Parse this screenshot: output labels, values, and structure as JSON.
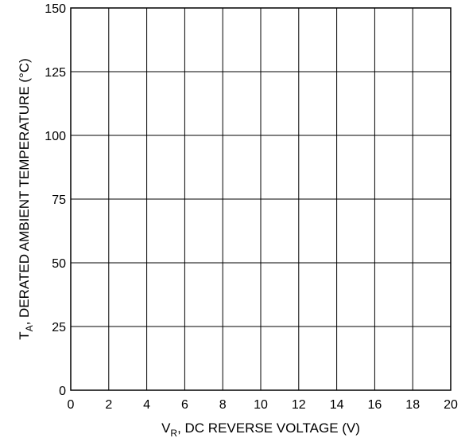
{
  "chart_data": {
    "type": "line",
    "title": "",
    "xlabel": {
      "main": "V",
      "sub": "R",
      "rest": ", DC REVERSE VOLTAGE (V)"
    },
    "ylabel": {
      "main": "T",
      "sub": "A",
      "rest": ", DERATED AMBIENT TEMPERATURE (°C)"
    },
    "xlim": [
      0,
      20
    ],
    "ylim": [
      0,
      150
    ],
    "x_ticks": [
      0,
      2,
      4,
      6,
      8,
      10,
      12,
      14,
      16,
      18,
      20
    ],
    "y_ticks": [
      0,
      25,
      50,
      75,
      100,
      125,
      150
    ],
    "grid": true,
    "series": []
  }
}
